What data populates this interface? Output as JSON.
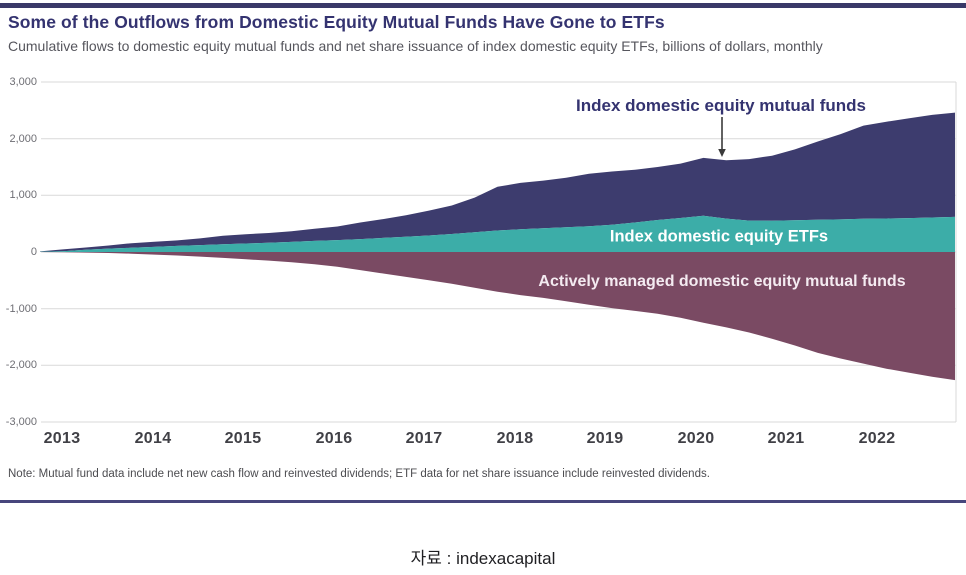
{
  "page": {
    "title": "Some of the Outflows from Domestic Equity Mutual Funds Have Gone to ETFs",
    "subtitle": "Cumulative flows to domestic equity mutual funds and net share issuance of index domestic equity ETFs, billions of dollars, monthly",
    "note": "Note: Mutual fund data include net new cash flow and reinvested dividends; ETF data for net share issuance include reinvested dividends.",
    "source": "자료 : indexacapital"
  },
  "colors": {
    "accent_rule": "#3a3968",
    "title_navy": "#343370",
    "area_index_mutual_funds": "#3d3c6e",
    "area_index_etfs": "#3cada8",
    "area_active_mutual_funds": "#7a4a63",
    "gridline": "#d9d9d9",
    "arrow": "#3a3a3a"
  },
  "chart_data": {
    "type": "area",
    "title": "Some of the Outflows from Domestic Equity Mutual Funds Have Gone to ETFs",
    "subtitle": "Cumulative flows to domestic equity mutual funds and net share issuance of index domestic equity ETFs, billions of dollars, monthly",
    "unit": "billions of dollars, monthly",
    "x_start": 2013,
    "x_step": 0.25,
    "xlim": [
      2013,
      2023
    ],
    "ylim": [
      -3000,
      3000
    ],
    "grid": true,
    "y_ticks": [
      3000,
      2000,
      1000,
      0,
      -1000,
      -2000,
      -3000
    ],
    "y_tick_labels": [
      "3,000",
      "2,000",
      "1,000",
      "0",
      "-1,000",
      "-2,000",
      "-3,000"
    ],
    "x_tick_labels": [
      "2013",
      "2014",
      "2015",
      "2016",
      "2017",
      "2018",
      "2019",
      "2020",
      "2021",
      "2022"
    ],
    "stacking": "ETF and index mutual fund series stacked above zero; active funds plotted below zero",
    "series": [
      {
        "name": "Index domestic equity ETFs",
        "color": "#3cada8",
        "values": [
          5,
          15,
          40,
          60,
          75,
          90,
          108,
          122,
          138,
          150,
          163,
          178,
          195,
          210,
          228,
          248,
          270,
          292,
          318,
          348,
          380,
          400,
          418,
          435,
          455,
          480,
          520,
          565,
          600,
          638,
          590,
          555,
          552,
          560,
          568,
          575,
          585,
          592,
          598,
          608,
          620
        ]
      },
      {
        "name": "Index domestic equity mutual funds",
        "color": "#3d3c6e",
        "stacked_on": "Index domestic equity ETFs",
        "values": [
          5,
          30,
          40,
          55,
          80,
          90,
          97,
          118,
          147,
          165,
          172,
          187,
          215,
          240,
          292,
          332,
          380,
          438,
          502,
          612,
          770,
          820,
          842,
          875,
          925,
          940,
          930,
          935,
          960,
          1022,
          1030,
          1085,
          1148,
          1250,
          1382,
          1505,
          1645,
          1708,
          1762,
          1812,
          1840
        ]
      },
      {
        "name": "Actively managed domestic equity mutual funds",
        "color": "#7a4a63",
        "values": [
          0,
          -5,
          -10,
          -18,
          -30,
          -45,
          -62,
          -82,
          -105,
          -128,
          -152,
          -180,
          -215,
          -260,
          -320,
          -380,
          -440,
          -500,
          -560,
          -630,
          -700,
          -760,
          -810,
          -870,
          -930,
          -990,
          -1040,
          -1090,
          -1160,
          -1250,
          -1330,
          -1420,
          -1530,
          -1650,
          -1780,
          -1880,
          -1970,
          -2060,
          -2130,
          -2200,
          -2260
        ]
      }
    ]
  }
}
